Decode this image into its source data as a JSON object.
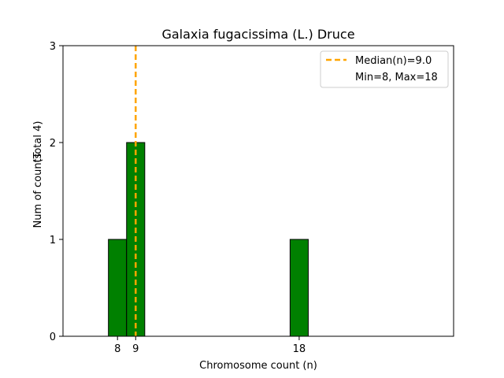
{
  "chart_data": {
    "type": "bar",
    "title": "Galaxia fugacissima (L.) Druce",
    "xlabel": "Chromosome count (n)",
    "ylabel": "Num of counts",
    "ylabel_note": "(Total 4)",
    "xlim": [
      5,
      26.5
    ],
    "ylim": [
      0,
      3
    ],
    "x_ticks": [
      8,
      9,
      18
    ],
    "y_ticks": [
      0,
      1,
      2,
      3
    ],
    "bar_width": 1,
    "bars": [
      {
        "x": 8,
        "count": 1
      },
      {
        "x": 9,
        "count": 2
      },
      {
        "x": 18,
        "count": 1
      }
    ],
    "bar_color": "#008000",
    "median_line": {
      "x": 9.0,
      "label": "Median(n)=9.0",
      "color": "#FFA500"
    },
    "legend": {
      "placement": "top-right",
      "entries": [
        "Median(n)=9.0",
        "Min=8, Max=18"
      ]
    },
    "grid": false
  }
}
